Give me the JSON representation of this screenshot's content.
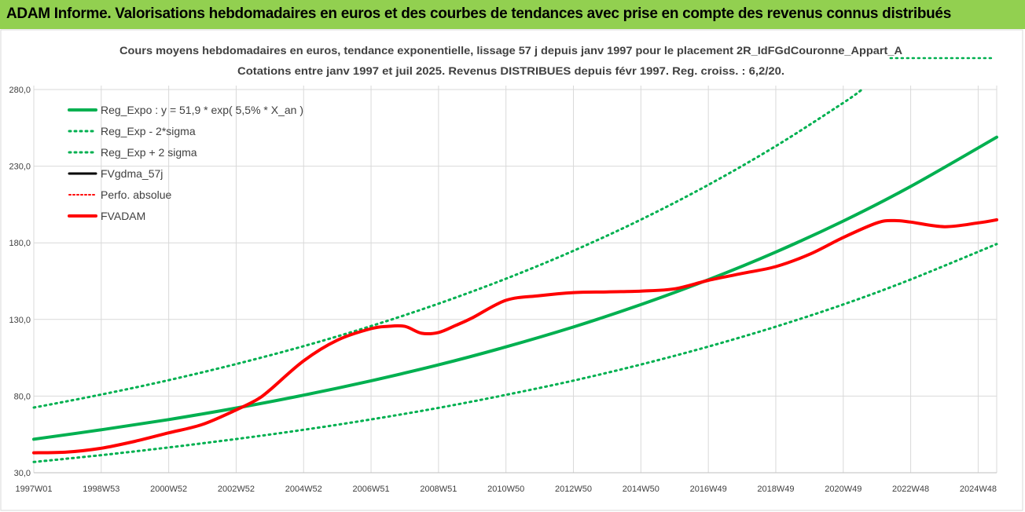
{
  "banner": {
    "title": "ADAM Informe. Valorisations hebdomadaires en euros et des courbes de tendances avec prise en compte des revenus connus distribués"
  },
  "colors": {
    "banner_bg": "#92d050",
    "trend_green": "#00b050",
    "fvadam_red": "#ff0000",
    "perfo_red": "#ff0000",
    "fvgdma_black": "#000000",
    "gridline": "#d9d9d9"
  },
  "chart_data": {
    "type": "line",
    "title": "Cours moyens hebdomadaires en euros, tendance exponentielle, lissage 57 j depuis janv 1997 pour le placement 2R_IdFGdCouronne_Appart_A",
    "subtitle": "Cotations entre janv 1997 et juil 2025. Revenus DISTRIBUES depuis févr 1997. Reg. croiss. : 6,2/20.",
    "xlabel": "",
    "ylabel": "",
    "ylim": [
      30,
      280
    ],
    "yticks": [
      "280,0",
      "230,0",
      "180,0",
      "130,0",
      "80,0",
      "30,0"
    ],
    "ytick_values": [
      280,
      230,
      180,
      130,
      80,
      30
    ],
    "xlim": [
      1997.0,
      2025.55
    ],
    "xticks": [
      "1997W01",
      "1998W53",
      "2000W52",
      "2002W52",
      "2004W52",
      "2006W51",
      "2008W51",
      "2010W50",
      "2012W50",
      "2014W50",
      "2016W49",
      "2018W49",
      "2020W49",
      "2022W48",
      "2024W48"
    ],
    "xtick_values": [
      1997.0,
      1999.0,
      2001.0,
      2003.0,
      2005.0,
      2007.0,
      2009.0,
      2011.0,
      2013.0,
      2015.0,
      2017.0,
      2019.0,
      2021.0,
      2023.0,
      2025.0
    ],
    "grid": true,
    "legend_position": "top-left",
    "legend": [
      {
        "label": "Reg_Expo : y = 51,9 * exp( 5,5% *  X_an )",
        "style": "solid-thick-green"
      },
      {
        "label": "Reg_Exp - 2*sigma",
        "style": "dotted-green"
      },
      {
        "label": "Reg_Exp + 2 sigma",
        "style": "dotted-green"
      },
      {
        "label": "FVgdma_57j",
        "style": "solid-black"
      },
      {
        "label": "Perfo. absolue",
        "style": "dotted-red"
      },
      {
        "label": "FVADAM",
        "style": "solid-thick-red"
      }
    ],
    "series": [
      {
        "name": "Reg_Expo : y = 51,9 * exp( 5,5% *  X_an )",
        "x": [
          1997.0,
          1999.0,
          2001.0,
          2003.0,
          2005.0,
          2007.0,
          2009.0,
          2011.0,
          2013.0,
          2015.0,
          2017.0,
          2019.0,
          2021.0,
          2023.0,
          2025.55
        ],
        "values": [
          51.9,
          58.0,
          64.7,
          72.2,
          80.6,
          90.0,
          100.4,
          112.1,
          125.1,
          139.7,
          155.9,
          174.0,
          194.2,
          216.8,
          248.9
        ]
      },
      {
        "name": "Reg_Exp - 2*sigma",
        "x": [
          1997.0,
          1999.0,
          2001.0,
          2003.0,
          2005.0,
          2007.0,
          2009.0,
          2011.0,
          2013.0,
          2015.0,
          2017.0,
          2019.0,
          2021.0,
          2023.0,
          2025.55
        ],
        "values": [
          37.0,
          41.5,
          46.5,
          52.0,
          58.0,
          64.8,
          72.3,
          80.8,
          90.1,
          100.6,
          112.3,
          125.3,
          139.8,
          156.1,
          179.2
        ]
      },
      {
        "name": "Reg_Exp + 2 sigma",
        "x": [
          1997.0,
          1999.0,
          2001.0,
          2003.0,
          2005.0,
          2007.0,
          2009.0,
          2011.0,
          2013.0,
          2015.0,
          2017.0,
          2019.0,
          2021.0,
          2021.55
        ],
        "values": [
          72.5,
          81.0,
          90.4,
          100.9,
          112.6,
          125.7,
          140.3,
          156.6,
          174.8,
          195.1,
          217.8,
          243.1,
          271.3,
          279.9
        ]
      },
      {
        "name": "FVADAM",
        "x": [
          1997.0,
          1998.0,
          1999.0,
          2000.0,
          2001.0,
          2002.0,
          2003.0,
          2003.6,
          2004.0,
          2005.0,
          2006.0,
          2007.0,
          2007.5,
          2008.0,
          2008.5,
          2009.0,
          2009.5,
          2010.0,
          2011.0,
          2012.0,
          2013.0,
          2014.0,
          2015.0,
          2016.0,
          2017.0,
          2018.0,
          2019.0,
          2020.0,
          2021.0,
          2022.0,
          2022.5,
          2023.0,
          2024.0,
          2025.0,
          2025.55
        ],
        "values": [
          43.0,
          43.5,
          46.0,
          50.5,
          56.0,
          61.5,
          71.0,
          77.5,
          84.0,
          103.0,
          116.5,
          124.0,
          125.5,
          125.5,
          121.0,
          121.5,
          126.0,
          131.0,
          142.5,
          145.5,
          147.5,
          148.0,
          148.5,
          150.0,
          155.5,
          160.0,
          164.5,
          172.5,
          183.5,
          193.0,
          194.5,
          193.5,
          190.5,
          193.0,
          195.0
        ]
      }
    ],
    "out_of_range_note": "Reg_Exp + 2 sigma continues above the 280,0 axis top from 2021 onward"
  }
}
